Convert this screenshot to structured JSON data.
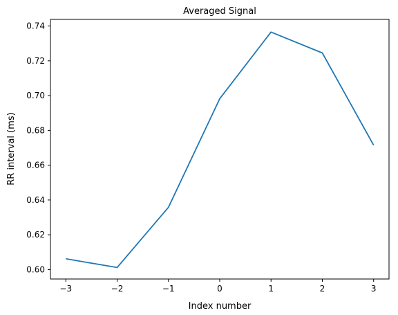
{
  "chart_data": {
    "type": "line",
    "title": "Averaged Signal",
    "xlabel": "Index number",
    "ylabel": "RR interval (ms)",
    "x": [
      -3,
      -2,
      -1,
      0,
      1,
      2,
      3
    ],
    "series": [
      {
        "values": [
          0.6062,
          0.6012,
          0.6358,
          0.6982,
          0.7365,
          0.7245,
          0.6715
        ],
        "color": "#1f77b4"
      }
    ],
    "xlim": [
      -3.3,
      3.3
    ],
    "ylim": [
      0.5946,
      0.7438
    ],
    "xticks": [
      -3,
      -2,
      -1,
      0,
      1,
      2,
      3
    ],
    "xtick_labels": [
      "−3",
      "−2",
      "−1",
      "0",
      "1",
      "2",
      "3"
    ],
    "yticks": [
      0.6,
      0.62,
      0.64,
      0.66,
      0.68,
      0.7,
      0.72,
      0.74
    ],
    "ytick_labels": [
      "0.60",
      "0.62",
      "0.64",
      "0.66",
      "0.68",
      "0.70",
      "0.72",
      "0.74"
    ],
    "grid": false,
    "legend": false
  }
}
